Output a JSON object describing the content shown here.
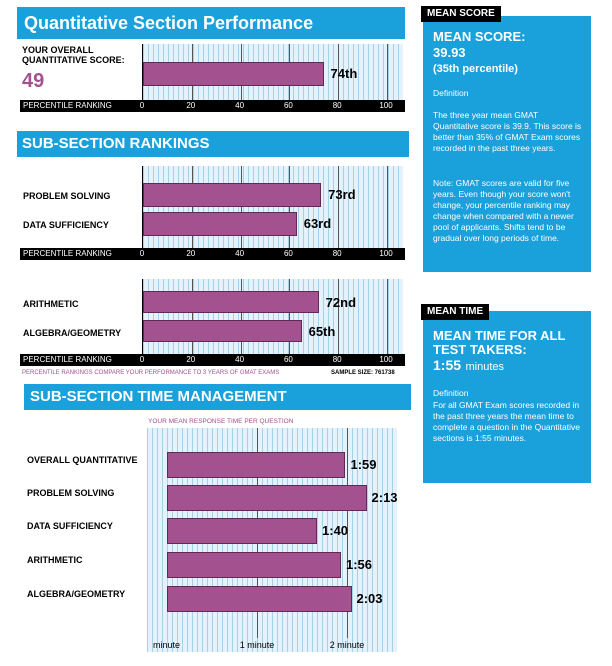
{
  "perf_banner": {
    "title": "Quantitative Section Performance"
  },
  "overall": {
    "label_line1": "YOUR OVERALL",
    "label_line2": "QUANTITATIVE SCORE:",
    "score": "49"
  },
  "percentile_axis": {
    "title": "PERCENTILE RANKING",
    "ticks": [
      "0",
      "20",
      "40",
      "60",
      "80",
      "100"
    ]
  },
  "subsection_banner": {
    "title": "SUB-SECTION RANKINGS"
  },
  "footnote": {
    "note": "PERCENTILE RANKINGS COMPARE YOUR PERFORMANCE TO 3 YEARS OF GMAT EXAMS",
    "sample": "SAMPLE SIZE: 761738"
  },
  "time_banner": {
    "title": "SUB-SECTION TIME MANAGEMENT"
  },
  "time_subtitle": "YOUR MEAN RESPONSE TIME PER QUESTION",
  "time_axis": {
    "ticks": [
      "minute",
      "1 minute",
      "2 minute"
    ]
  },
  "mean_score": {
    "tag": "MEAN SCORE",
    "title": "MEAN SCORE:",
    "value": "39.93",
    "percentile": "(35th percentile)",
    "def_label": "Definition",
    "description": "The three year mean GMAT Quantitative score is 39.9. This score is better than 35% of GMAT Exam scores recorded in the past three years.",
    "note": "Note:  GMAT scores are valid for five years. Even though your score won't change, your percentile ranking may change when compared with a newer pool of applicants.  Shifts tend to be gradual over long periods of time."
  },
  "mean_time": {
    "tag": "MEAN TIME",
    "title_line1": "MEAN TIME FOR ALL",
    "title_line2": "TEST TAKERS:",
    "value": "1:55",
    "unit": "minutes",
    "def_label": "Definition",
    "description": "For all GMAT Exam scores recorded in the past three years the mean time to complete a question in the Quantitative sections is 1:55 minutes."
  },
  "colors": {
    "banner": "#1aa0da",
    "bar": "#a4518f",
    "grid_bg": "#e3f2fb",
    "footnote": "#a4518f"
  },
  "chart_data": [
    {
      "type": "bar",
      "orientation": "horizontal",
      "title": "Quantitative Section Performance",
      "categories": [
        "YOUR OVERALL QUANTITATIVE SCORE: 49"
      ],
      "values": [
        74
      ],
      "value_labels": [
        "74th"
      ],
      "xlabel": "PERCENTILE RANKING",
      "xlim": [
        0,
        100
      ]
    },
    {
      "type": "bar",
      "orientation": "horizontal",
      "title": "SUB-SECTION RANKINGS",
      "categories": [
        "PROBLEM SOLVING",
        "DATA SUFFICIENCY"
      ],
      "values": [
        73,
        63
      ],
      "value_labels": [
        "73rd",
        "63rd"
      ],
      "xlabel": "PERCENTILE RANKING",
      "xlim": [
        0,
        100
      ]
    },
    {
      "type": "bar",
      "orientation": "horizontal",
      "categories": [
        "ARITHMETIC",
        "ALGEBRA/GEOMETRY"
      ],
      "values": [
        72,
        65
      ],
      "value_labels": [
        "72nd",
        "65th"
      ],
      "xlabel": "PERCENTILE RANKING",
      "xlim": [
        0,
        100
      ]
    },
    {
      "type": "bar",
      "orientation": "horizontal",
      "title": "SUB-SECTION TIME MANAGEMENT",
      "subtitle": "YOUR MEAN RESPONSE TIME PER QUESTION",
      "categories": [
        "OVERALL QUANTITATIVE",
        "PROBLEM SOLVING",
        "DATA SUFFICIENCY",
        "ARITHMETIC",
        "ALGEBRA/GEOMETRY"
      ],
      "values": [
        1.983,
        2.217,
        1.667,
        1.933,
        2.05
      ],
      "value_labels": [
        "1:59",
        "2:13",
        "1:40",
        "1:56",
        "2:03"
      ],
      "unit": "minutes",
      "xlim": [
        0,
        2.5
      ]
    }
  ]
}
